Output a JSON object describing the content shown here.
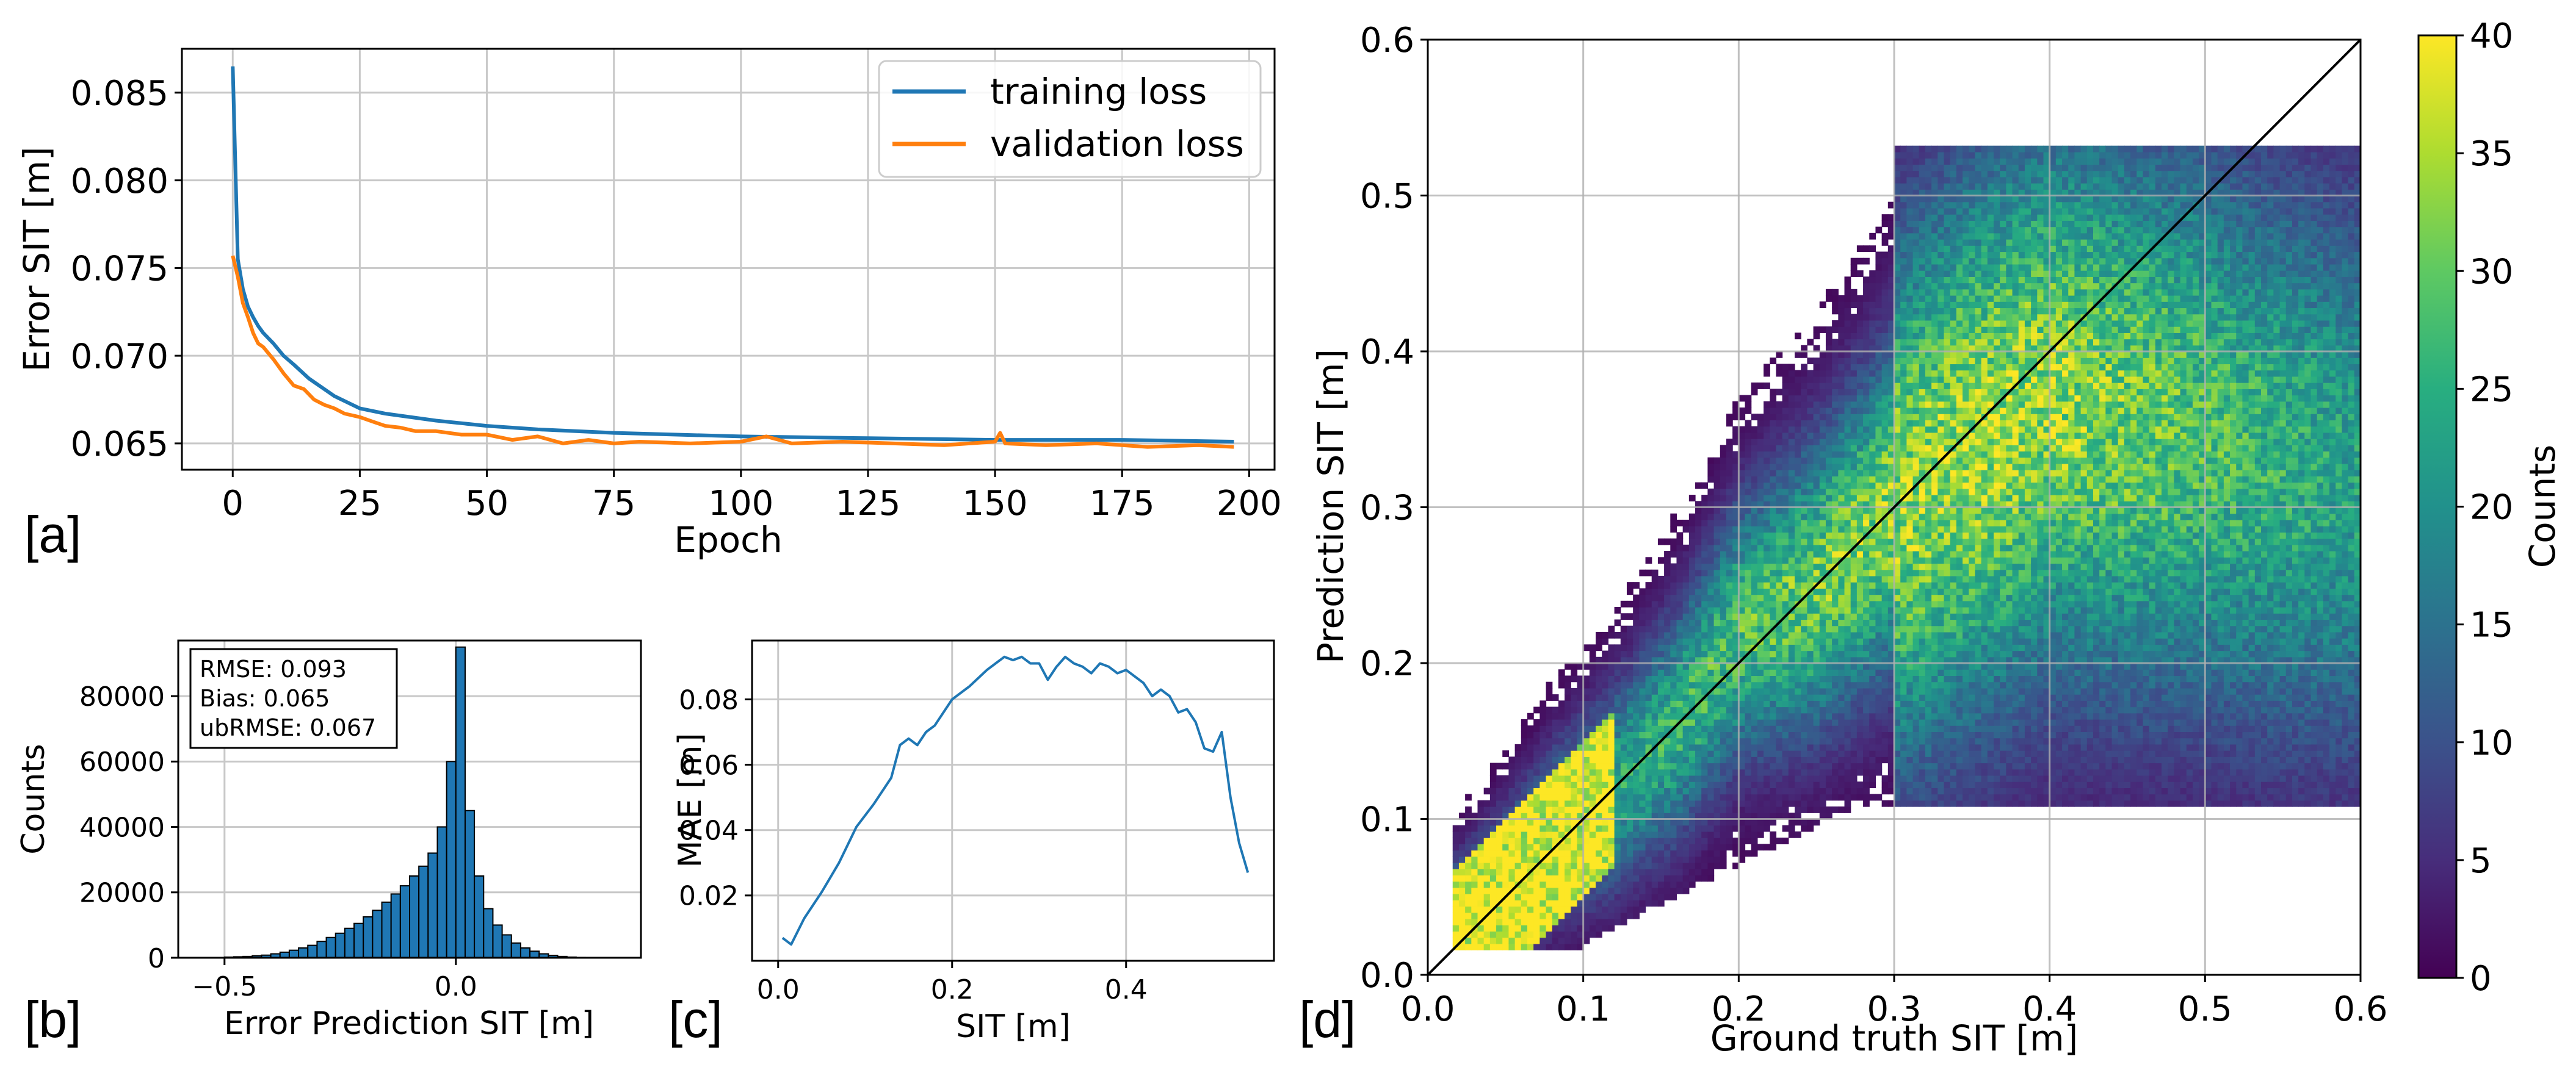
{
  "chart_data": [
    {
      "panel": "a",
      "type": "line",
      "panel_label": "[a]",
      "xlabel": "Epoch",
      "ylabel": "Error SIT [m]",
      "xlim": [
        -10,
        205
      ],
      "ylim": [
        0.0635,
        0.0875
      ],
      "xticks": [
        0,
        25,
        50,
        75,
        100,
        125,
        150,
        175,
        200
      ],
      "xtick_labels": [
        "0",
        "25",
        "50",
        "75",
        "100",
        "125",
        "150",
        "175",
        "200"
      ],
      "yticks": [
        0.065,
        0.07,
        0.075,
        0.08,
        0.085
      ],
      "ytick_labels": [
        "0.065",
        "0.070",
        "0.075",
        "0.080",
        "0.085"
      ],
      "grid": true,
      "legend_position": "top-right",
      "series": [
        {
          "name": "training loss",
          "color": "#1f77b4",
          "x": [
            0,
            1,
            2,
            3,
            4,
            5,
            6,
            8,
            10,
            12,
            15,
            20,
            25,
            30,
            40,
            50,
            60,
            75,
            100,
            125,
            150,
            175,
            197
          ],
          "y": [
            0.0865,
            0.0755,
            0.0738,
            0.0728,
            0.0722,
            0.0717,
            0.0713,
            0.0707,
            0.07,
            0.0695,
            0.0687,
            0.0677,
            0.067,
            0.0667,
            0.0663,
            0.066,
            0.0658,
            0.0656,
            0.0654,
            0.0653,
            0.0652,
            0.0652,
            0.0651
          ]
        },
        {
          "name": "validation loss",
          "color": "#ff7f0e",
          "x": [
            0,
            1,
            2,
            3,
            4,
            5,
            6,
            8,
            10,
            12,
            14,
            16,
            18,
            20,
            22,
            25,
            28,
            30,
            33,
            36,
            40,
            45,
            50,
            55,
            60,
            65,
            70,
            75,
            80,
            90,
            100,
            105,
            110,
            120,
            130,
            140,
            150,
            151,
            152,
            160,
            170,
            180,
            190,
            197
          ],
          "y": [
            0.0757,
            0.0745,
            0.073,
            0.0722,
            0.0713,
            0.0707,
            0.0705,
            0.0698,
            0.069,
            0.0683,
            0.0681,
            0.0675,
            0.0672,
            0.067,
            0.0667,
            0.0665,
            0.0662,
            0.066,
            0.0659,
            0.0657,
            0.0657,
            0.0655,
            0.0655,
            0.0652,
            0.0654,
            0.065,
            0.0652,
            0.065,
            0.0651,
            0.065,
            0.0651,
            0.0654,
            0.065,
            0.0651,
            0.065,
            0.0649,
            0.0651,
            0.0656,
            0.065,
            0.0649,
            0.065,
            0.0648,
            0.0649,
            0.0648
          ]
        }
      ]
    },
    {
      "panel": "b",
      "type": "bar",
      "panel_label": "[b]",
      "xlabel": "Error Prediction SIT [m]",
      "ylabel": "Counts",
      "xlim": [
        -0.6,
        0.4
      ],
      "ylim": [
        0,
        97000
      ],
      "xticks": [
        -0.5,
        0.0
      ],
      "xtick_labels": [
        "−0.5",
        "0.0"
      ],
      "yticks": [
        0,
        20000,
        40000,
        60000,
        80000
      ],
      "ytick_labels": [
        "0",
        "20000",
        "40000",
        "60000",
        "80000"
      ],
      "grid": true,
      "bar_color": "#1f77b4",
      "bin_width": 0.02,
      "bin_left_edges": [
        -0.5,
        -0.48,
        -0.46,
        -0.44,
        -0.42,
        -0.4,
        -0.38,
        -0.36,
        -0.34,
        -0.32,
        -0.3,
        -0.28,
        -0.26,
        -0.24,
        -0.22,
        -0.2,
        -0.18,
        -0.16,
        -0.14,
        -0.12,
        -0.1,
        -0.08,
        -0.06,
        -0.04,
        -0.02,
        0.0,
        0.02,
        0.04,
        0.06,
        0.08,
        0.1,
        0.12,
        0.14,
        0.16,
        0.18,
        0.2,
        0.22,
        0.24,
        0.26,
        0.28
      ],
      "counts": [
        200,
        300,
        400,
        600,
        800,
        1200,
        1700,
        2300,
        3000,
        3800,
        5000,
        6200,
        7500,
        9000,
        10500,
        12500,
        14500,
        17000,
        19500,
        22000,
        25000,
        28000,
        32000,
        40000,
        60000,
        95000,
        45000,
        25000,
        15000,
        10000,
        7000,
        4500,
        3000,
        2000,
        1200,
        700,
        400,
        200,
        100,
        50
      ],
      "stats_box": [
        "RMSE: 0.093",
        "Bias: 0.065",
        "ubRMSE: 0.067"
      ]
    },
    {
      "panel": "c",
      "type": "line",
      "panel_label": "[c]",
      "xlabel": "SIT [m]",
      "ylabel": "MAE [m]",
      "xlim": [
        -0.03,
        0.57
      ],
      "ylim": [
        0.0,
        0.098
      ],
      "xticks": [
        0.0,
        0.2,
        0.4
      ],
      "xtick_labels": [
        "0.0",
        "0.2",
        "0.4"
      ],
      "yticks": [
        0.02,
        0.04,
        0.06,
        0.08
      ],
      "ytick_labels": [
        "0.02",
        "0.04",
        "0.06",
        "0.08"
      ],
      "grid": true,
      "series": [
        {
          "name": "MAE",
          "color": "#1f77b4",
          "x": [
            0.005,
            0.015,
            0.03,
            0.05,
            0.07,
            0.09,
            0.11,
            0.13,
            0.14,
            0.15,
            0.16,
            0.17,
            0.18,
            0.2,
            0.22,
            0.24,
            0.25,
            0.26,
            0.27,
            0.28,
            0.29,
            0.3,
            0.31,
            0.32,
            0.33,
            0.34,
            0.35,
            0.36,
            0.37,
            0.38,
            0.39,
            0.4,
            0.41,
            0.42,
            0.43,
            0.44,
            0.45,
            0.46,
            0.47,
            0.48,
            0.49,
            0.5,
            0.51,
            0.52,
            0.53,
            0.54
          ],
          "y": [
            0.007,
            0.005,
            0.013,
            0.021,
            0.03,
            0.041,
            0.048,
            0.056,
            0.066,
            0.068,
            0.066,
            0.07,
            0.072,
            0.08,
            0.084,
            0.089,
            0.091,
            0.093,
            0.092,
            0.093,
            0.091,
            0.091,
            0.086,
            0.09,
            0.093,
            0.091,
            0.09,
            0.088,
            0.091,
            0.09,
            0.088,
            0.089,
            0.087,
            0.085,
            0.081,
            0.083,
            0.081,
            0.076,
            0.077,
            0.073,
            0.065,
            0.064,
            0.07,
            0.05,
            0.036,
            0.027
          ]
        }
      ]
    },
    {
      "panel": "d",
      "type": "heatmap",
      "panel_label": "[d]",
      "xlabel": "Ground truth SIT [m]",
      "ylabel": "Prediction SIT [m]",
      "xlim": [
        0.0,
        0.6
      ],
      "ylim": [
        0.0,
        0.6
      ],
      "xticks": [
        0.0,
        0.1,
        0.2,
        0.3,
        0.4,
        0.5,
        0.6
      ],
      "xtick_labels": [
        "0.0",
        "0.1",
        "0.2",
        "0.3",
        "0.4",
        "0.5",
        "0.6"
      ],
      "yticks": [
        0.0,
        0.1,
        0.2,
        0.3,
        0.4,
        0.5,
        0.6
      ],
      "ytick_labels": [
        "0.0",
        "0.1",
        "0.2",
        "0.3",
        "0.4",
        "0.5",
        "0.6"
      ],
      "grid": true,
      "colormap": "viridis",
      "one_to_one_line": true,
      "colorbar_label": "Counts",
      "colorbar_range": [
        0,
        40
      ],
      "colorbar_ticks": [
        0,
        5,
        10,
        15,
        20,
        25,
        30,
        35,
        40
      ],
      "colorbar_tick_labels": [
        "0",
        "5",
        "10",
        "15",
        "20",
        "25",
        "30",
        "35",
        "40"
      ],
      "density_ridge": {
        "x": [
          0.02,
          0.05,
          0.08,
          0.12,
          0.16,
          0.2,
          0.25,
          0.3,
          0.35,
          0.4,
          0.45,
          0.5,
          0.55,
          0.6
        ],
        "pred": [
          0.035,
          0.06,
          0.09,
          0.12,
          0.16,
          0.22,
          0.25,
          0.3,
          0.34,
          0.37,
          0.36,
          0.35,
          0.33,
          0.32
        ]
      }
    }
  ]
}
